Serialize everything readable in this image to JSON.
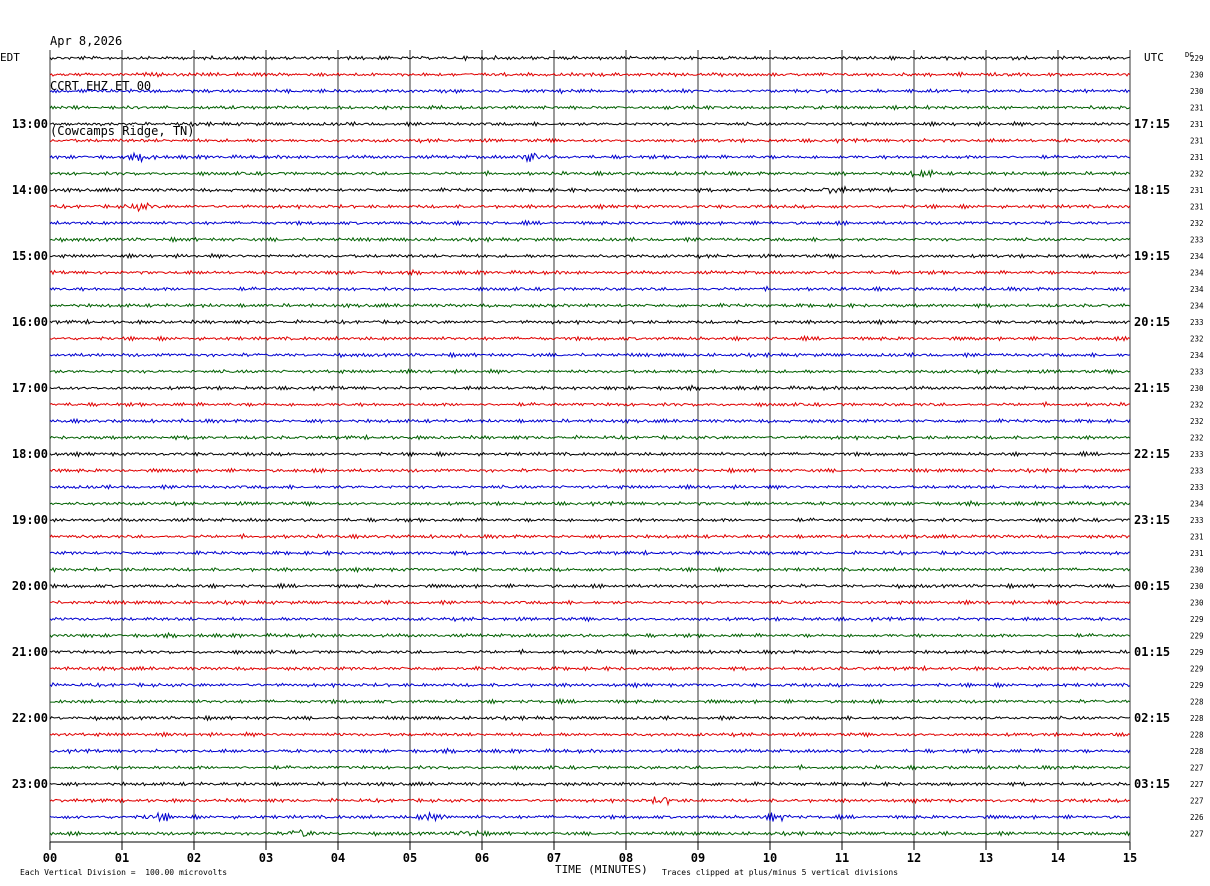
{
  "header": {
    "date": "Apr 8,2026",
    "station": "CCRT EHZ ET 00",
    "location": "(Cowcamps Ridge, TN)"
  },
  "left_zone_label": "EDT",
  "right_zone_label": "UTC",
  "dc_label": "DC",
  "footer": {
    "scale_note": "Each Vertical Division =  100.00 microvolts",
    "xlabel": "TIME (MINUTES)",
    "clip_note": "Traces clipped at plus/minus 5 vertical divisions"
  },
  "colors": {
    "trace_cycle": [
      "#000000",
      "#e00000",
      "#0000d0",
      "#006000"
    ],
    "grid": "#000000"
  },
  "chart_data": {
    "type": "line",
    "title": "",
    "xlabel": "TIME (MINUTES)",
    "xlim": [
      0,
      15
    ],
    "x_ticks": [
      "00",
      "01",
      "02",
      "03",
      "04",
      "05",
      "06",
      "07",
      "08",
      "09",
      "10",
      "11",
      "12",
      "13",
      "14",
      "15"
    ],
    "left_hour_labels": [
      "13:00",
      "14:00",
      "15:00",
      "16:00",
      "17:00",
      "18:00",
      "19:00",
      "20:00",
      "21:00",
      "22:00",
      "23:00"
    ],
    "right_hour_labels": [
      "17:15",
      "18:15",
      "19:15",
      "20:15",
      "21:15",
      "22:15",
      "23:15",
      "00:15",
      "01:15",
      "02:15",
      "03:15"
    ],
    "hour_label_first_row": 4,
    "rows_per_hour": 4,
    "dc_values": [
      "229",
      "230",
      "230",
      "231",
      "231",
      "231",
      "231",
      "232",
      "231",
      "231",
      "232",
      "233",
      "234",
      "234",
      "234",
      "234",
      "233",
      "232",
      "234",
      "233",
      "230",
      "232",
      "232",
      "232",
      "233",
      "233",
      "233",
      "234",
      "233",
      "231",
      "231",
      "230",
      "230",
      "230",
      "229",
      "229",
      "229",
      "229",
      "229",
      "228",
      "228",
      "228",
      "228",
      "227",
      "227",
      "227",
      "226",
      "227"
    ],
    "events": [
      {
        "row": 6,
        "minute": 6.7,
        "amplitude": 2.2
      },
      {
        "row": 6,
        "minute": 1.3,
        "amplitude": 1.2
      },
      {
        "row": 7,
        "minute": 12.1,
        "amplitude": 1.5
      },
      {
        "row": 8,
        "minute": 10.9,
        "amplitude": 1.6
      },
      {
        "row": 9,
        "minute": 1.25,
        "amplitude": 1.5
      },
      {
        "row": 45,
        "minute": 8.5,
        "amplitude": 1.8
      },
      {
        "row": 46,
        "minute": 1.5,
        "amplitude": 1.5
      },
      {
        "row": 46,
        "minute": 5.3,
        "amplitude": 1.8
      },
      {
        "row": 46,
        "minute": 10.1,
        "amplitude": 1.6
      },
      {
        "row": 47,
        "minute": 3.5,
        "amplitude": 2.0
      },
      {
        "row": 47,
        "minute": 5.8,
        "amplitude": 1.4
      }
    ]
  }
}
